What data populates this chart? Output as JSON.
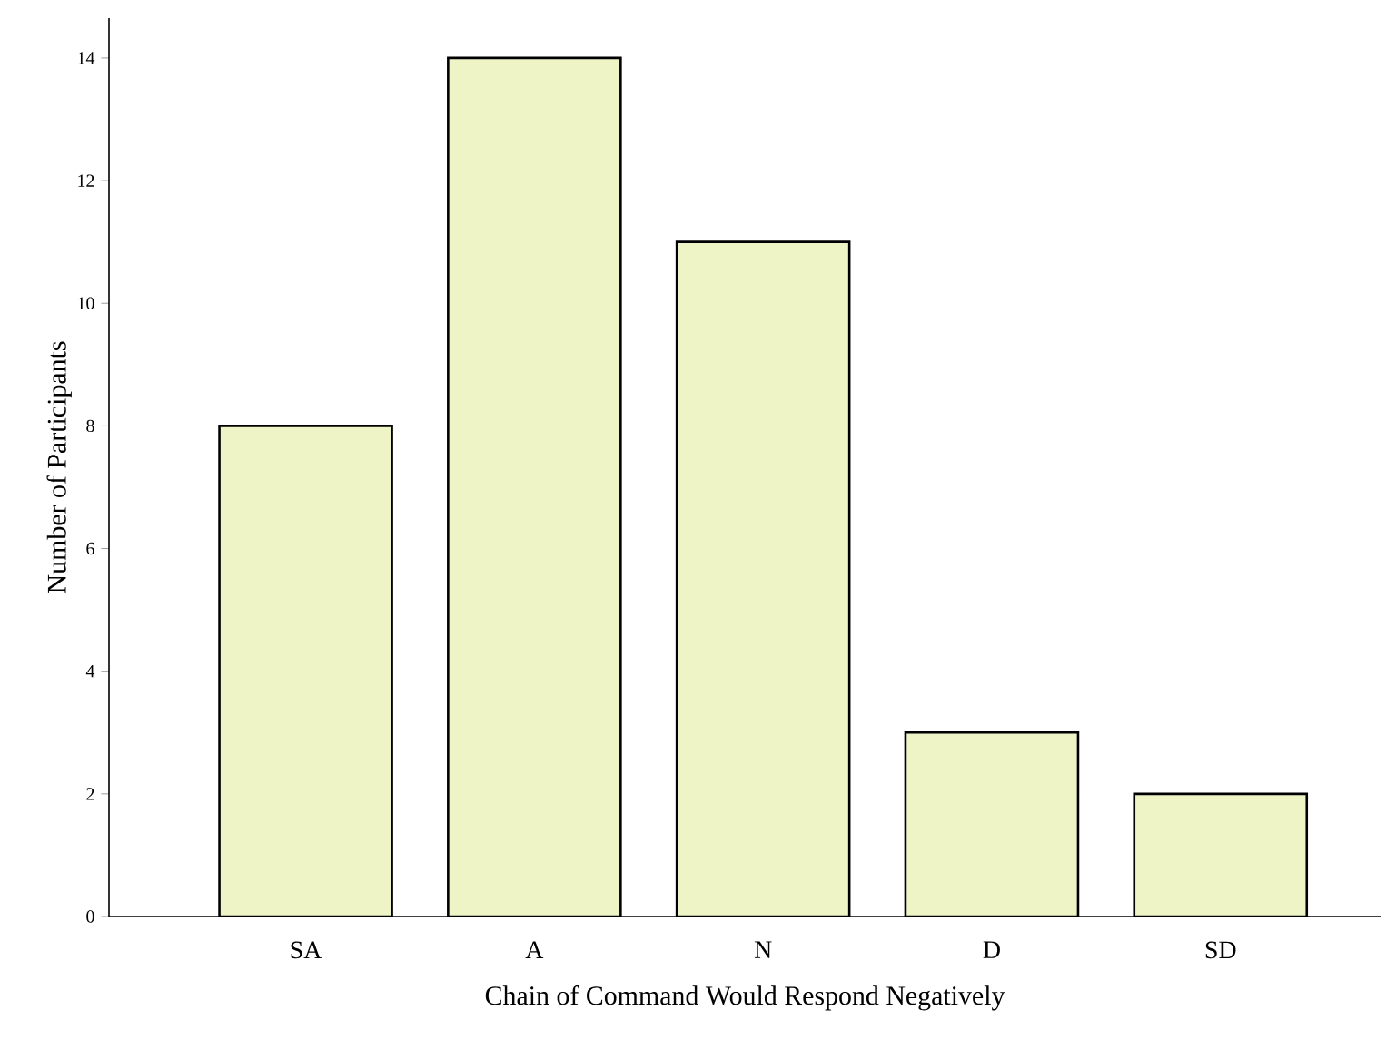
{
  "chart_data": {
    "type": "bar",
    "xlabel": "Chain of Command Would Respond Negatively",
    "ylabel": "Number of Participants",
    "categories": [
      "SA",
      "A",
      "N",
      "D",
      "SD"
    ],
    "values": [
      8,
      14,
      11,
      3,
      2
    ],
    "color": "#eef4c6",
    "ylim": [
      0,
      14.65
    ],
    "yticks": [
      0,
      2,
      4,
      6,
      8,
      10,
      12,
      14
    ],
    "grid": false
  }
}
